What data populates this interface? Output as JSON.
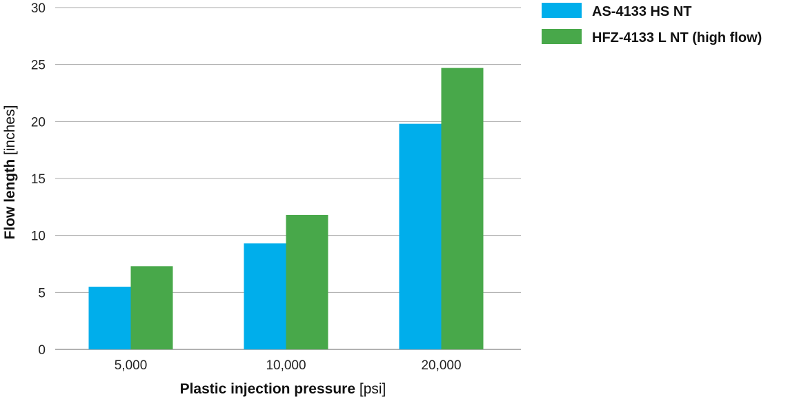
{
  "chart_data": {
    "type": "bar",
    "categories": [
      "5,000",
      "10,000",
      "20,000"
    ],
    "series": [
      {
        "name": "AS-4133 HS NT",
        "color": "#00AEEB",
        "values": [
          5.5,
          9.3,
          19.8
        ]
      },
      {
        "name": "HFZ-4133 L NT (high flow)",
        "color": "#48A84A",
        "values": [
          7.3,
          11.8,
          24.7
        ]
      }
    ],
    "xlabel": "Plastic injection pressure",
    "xlabel_unit": "[psi]",
    "ylabel": "Flow length",
    "ylabel_unit": "[inches]",
    "ylim": [
      0,
      30
    ],
    "yticks": [
      0,
      5,
      10,
      15,
      20,
      25,
      30
    ],
    "grid": true,
    "legend": "top-right"
  }
}
